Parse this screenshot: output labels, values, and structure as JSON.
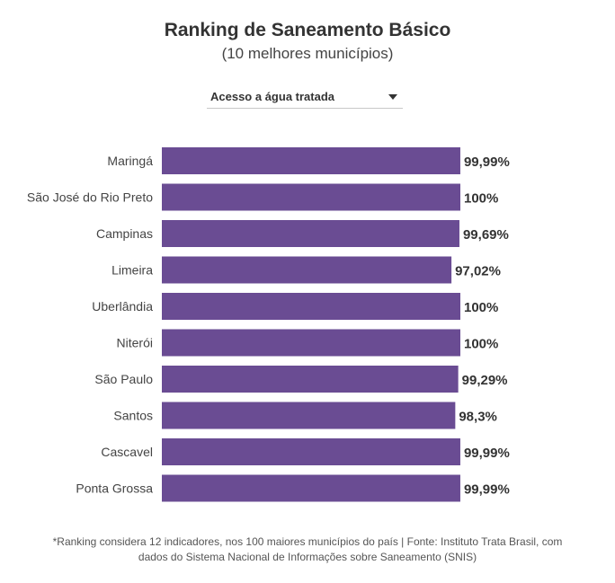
{
  "header": {
    "title": "Ranking de Saneamento Básico",
    "subtitle": "(10 melhores municípios)"
  },
  "filter": {
    "selected": "Acesso a água tratada",
    "icon": "chevron-down-icon"
  },
  "colors": {
    "bar": "#6a4c93"
  },
  "chart_data": {
    "type": "bar",
    "orientation": "horizontal",
    "categories": [
      "Maringá",
      "São José do Rio Preto",
      "Campinas",
      "Limeira",
      "Uberlândia",
      "Niterói",
      "São Paulo",
      "Santos",
      "Cascavel",
      "Ponta Grossa"
    ],
    "values": [
      99.99,
      100,
      99.69,
      97.02,
      100,
      100,
      99.29,
      98.3,
      99.99,
      99.99
    ],
    "labels": [
      "99,99%",
      "100%",
      "99,69%",
      "97,02%",
      "100%",
      "100%",
      "99,29%",
      "98,3%",
      "99,99%",
      "99,99%"
    ],
    "xlim": [
      0,
      100
    ],
    "grid": false,
    "legend": false
  },
  "footnote": {
    "line1": "*Ranking considera 12 indicadores, nos 100 maiores municípios do país | Fonte: Instituto Trata Brasil, com",
    "line2": "dados do Sistema Nacional de Informações sobre Saneamento (SNIS)"
  }
}
